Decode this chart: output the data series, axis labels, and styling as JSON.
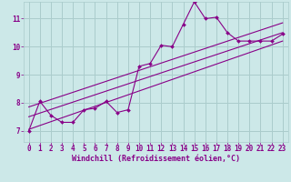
{
  "xlabel": "Windchill (Refroidissement éolien,°C)",
  "bg_color": "#cce8e8",
  "line_color": "#880088",
  "grid_color": "#aacccc",
  "xlim": [
    -0.5,
    23.5
  ],
  "ylim": [
    6.6,
    11.6
  ],
  "yticks": [
    7,
    8,
    9,
    10,
    11
  ],
  "xticks": [
    0,
    1,
    2,
    3,
    4,
    5,
    6,
    7,
    8,
    9,
    10,
    11,
    12,
    13,
    14,
    15,
    16,
    17,
    18,
    19,
    20,
    21,
    22,
    23
  ],
  "series1_x": [
    0,
    1,
    2,
    3,
    4,
    5,
    6,
    7,
    8,
    9,
    10,
    11,
    12,
    13,
    14,
    15,
    16,
    17,
    18,
    19,
    20,
    21,
    22,
    23
  ],
  "series1_y": [
    7.0,
    8.05,
    7.55,
    7.3,
    7.3,
    7.75,
    7.8,
    8.05,
    7.65,
    7.75,
    9.3,
    9.4,
    10.05,
    10.0,
    10.8,
    11.6,
    11.0,
    11.05,
    10.5,
    10.2,
    10.2,
    10.2,
    10.2,
    10.45
  ],
  "line1_x": [
    0,
    23
  ],
  "line1_y": [
    7.05,
    10.2
  ],
  "line2_x": [
    0,
    23
  ],
  "line2_y": [
    7.5,
    10.5
  ],
  "line3_x": [
    0,
    23
  ],
  "line3_y": [
    7.85,
    10.85
  ]
}
